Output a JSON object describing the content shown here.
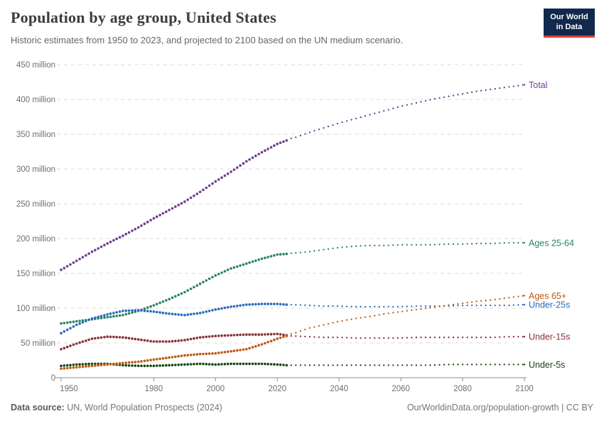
{
  "header": {
    "title": "Population by age group, United States",
    "subtitle": "Historic estimates from 1950 to 2023, and projected to 2100 based on the UN medium scenario.",
    "logo": {
      "line1": "Our World",
      "line2": "in Data",
      "bg_color": "#12294E",
      "accent_color": "#DC3D33"
    }
  },
  "footer": {
    "source_label": "Data source:",
    "source_text": " UN, World Population Prospects (2024)",
    "link_text": "OurWorldinData.org/population-growth",
    "separator": " | ",
    "license": "CC BY"
  },
  "chart_data": {
    "type": "line",
    "title": "Population by age group, United States",
    "subtitle": "Historic estimates from 1950 to 2023, and projected to 2100 based on the UN medium scenario.",
    "xlabel": "",
    "ylabel": "",
    "xlim": [
      1950,
      2100
    ],
    "ylim": [
      0,
      450
    ],
    "x_ticks": [
      "1950",
      "1980",
      "2000",
      "2020",
      "2040",
      "2060",
      "2080",
      "2100"
    ],
    "y_ticks": [
      {
        "value": 0,
        "label": "0"
      },
      {
        "value": 50,
        "label": "50 million"
      },
      {
        "value": 100,
        "label": "100 million"
      },
      {
        "value": 150,
        "label": "150 million"
      },
      {
        "value": 200,
        "label": "200 million"
      },
      {
        "value": 250,
        "label": "250 million"
      },
      {
        "value": 300,
        "label": "300 million"
      },
      {
        "value": 350,
        "label": "350 million"
      },
      {
        "value": 400,
        "label": "400 million"
      },
      {
        "value": 450,
        "label": "450 million"
      }
    ],
    "grid": "horizontal-dashed",
    "legend_position": "right-end-labels",
    "historic_range": [
      1950,
      2023
    ],
    "projection_range": [
      2024,
      2100
    ],
    "unit": "million people",
    "series": [
      {
        "name": "Total",
        "color": "#6D3E91",
        "historic": {
          "years": [
            1950,
            1955,
            1960,
            1965,
            1970,
            1975,
            1980,
            1985,
            1990,
            1995,
            2000,
            2005,
            2010,
            2015,
            2020,
            2023
          ],
          "values": [
            155,
            168,
            181,
            193,
            204,
            216,
            229,
            241,
            253,
            267,
            282,
            296,
            311,
            324,
            336,
            341
          ]
        },
        "projected": {
          "years": [
            2025,
            2030,
            2035,
            2040,
            2045,
            2050,
            2055,
            2060,
            2065,
            2070,
            2075,
            2080,
            2085,
            2090,
            2095,
            2100
          ],
          "values": [
            344,
            352,
            359,
            366,
            372,
            378,
            384,
            390,
            395,
            400,
            404,
            408,
            412,
            415,
            418,
            421
          ]
        }
      },
      {
        "name": "Ages 25-64",
        "color": "#2C8465",
        "historic": {
          "years": [
            1950,
            1955,
            1960,
            1965,
            1970,
            1975,
            1980,
            1985,
            1990,
            1995,
            2000,
            2005,
            2010,
            2015,
            2020,
            2023
          ],
          "values": [
            78,
            81,
            84,
            87,
            90,
            96,
            104,
            113,
            123,
            135,
            147,
            157,
            164,
            171,
            177,
            178
          ]
        },
        "projected": {
          "years": [
            2025,
            2030,
            2035,
            2040,
            2045,
            2050,
            2055,
            2060,
            2065,
            2070,
            2075,
            2080,
            2085,
            2090,
            2095,
            2100
          ],
          "values": [
            179,
            181,
            184,
            187,
            189,
            190,
            190,
            191,
            191,
            191,
            192,
            192,
            193,
            193,
            194,
            194
          ]
        }
      },
      {
        "name": "Under-25s",
        "color": "#286BBB",
        "historic": {
          "years": [
            1950,
            1955,
            1960,
            1965,
            1970,
            1975,
            1980,
            1985,
            1990,
            1995,
            2000,
            2005,
            2010,
            2015,
            2020,
            2023
          ],
          "values": [
            64,
            76,
            85,
            91,
            96,
            97,
            95,
            92,
            90,
            93,
            98,
            102,
            105,
            106,
            106,
            105
          ]
        },
        "projected": {
          "years": [
            2025,
            2030,
            2035,
            2040,
            2045,
            2050,
            2055,
            2060,
            2065,
            2070,
            2075,
            2080,
            2085,
            2090,
            2095,
            2100
          ],
          "values": [
            105,
            104,
            103,
            103,
            102,
            102,
            102,
            102,
            103,
            103,
            103,
            104,
            104,
            104,
            104,
            105
          ]
        }
      },
      {
        "name": "Under-15s",
        "color": "#883039",
        "historic": {
          "years": [
            1950,
            1955,
            1960,
            1965,
            1970,
            1975,
            1980,
            1985,
            1990,
            1995,
            2000,
            2005,
            2010,
            2015,
            2020,
            2023
          ],
          "values": [
            41,
            49,
            56,
            59,
            58,
            55,
            52,
            52,
            54,
            58,
            60,
            61,
            62,
            62,
            63,
            61
          ]
        },
        "projected": {
          "years": [
            2025,
            2030,
            2035,
            2040,
            2045,
            2050,
            2055,
            2060,
            2065,
            2070,
            2075,
            2080,
            2085,
            2090,
            2095,
            2100
          ],
          "values": [
            60,
            59,
            58,
            58,
            57,
            57,
            57,
            57,
            58,
            58,
            58,
            58,
            58,
            58,
            59,
            59
          ]
        }
      },
      {
        "name": "Under-5s",
        "color": "#18470F",
        "historic": {
          "years": [
            1950,
            1955,
            1960,
            1965,
            1970,
            1975,
            1980,
            1985,
            1990,
            1995,
            2000,
            2005,
            2010,
            2015,
            2020,
            2023
          ],
          "values": [
            17,
            19,
            20,
            20,
            18,
            17,
            17,
            18,
            19,
            20,
            19,
            20,
            20,
            20,
            19,
            18
          ]
        },
        "projected": {
          "years": [
            2025,
            2030,
            2035,
            2040,
            2045,
            2050,
            2055,
            2060,
            2065,
            2070,
            2075,
            2080,
            2085,
            2090,
            2095,
            2100
          ],
          "values": [
            18,
            18,
            18,
            18,
            18,
            18,
            18,
            18,
            18,
            18,
            19,
            19,
            19,
            19,
            19,
            19
          ]
        }
      },
      {
        "name": "Ages 65+",
        "color": "#BE5915",
        "historic": {
          "years": [
            1950,
            1955,
            1960,
            1965,
            1970,
            1975,
            1980,
            1985,
            1990,
            1995,
            2000,
            2005,
            2010,
            2015,
            2020,
            2023
          ],
          "values": [
            13,
            15,
            17,
            19,
            21,
            23,
            26,
            29,
            32,
            34,
            35,
            38,
            41,
            48,
            56,
            60
          ]
        },
        "projected": {
          "years": [
            2025,
            2030,
            2035,
            2040,
            2045,
            2050,
            2055,
            2060,
            2065,
            2070,
            2075,
            2080,
            2085,
            2090,
            2095,
            2100
          ],
          "values": [
            63,
            71,
            76,
            81,
            85,
            88,
            92,
            95,
            98,
            101,
            104,
            107,
            110,
            112,
            115,
            118
          ]
        }
      }
    ]
  }
}
